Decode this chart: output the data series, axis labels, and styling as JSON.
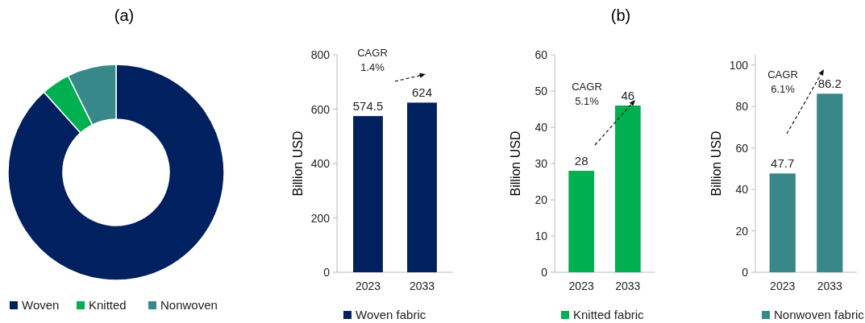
{
  "chart_data": [
    {
      "type": "donut",
      "title": "(a)",
      "categories": [
        "Woven",
        "Knitted",
        "Nonwoven"
      ],
      "values": [
        88.36,
        4.31,
        7.33
      ],
      "colors": [
        "#002060",
        "#00b050",
        "#38888a"
      ],
      "legend": "bottom"
    },
    {
      "type": "bar",
      "ylabel": "Billion USD",
      "categories": [
        "2023",
        "2033"
      ],
      "series": [
        {
          "name": "Woven fabric",
          "color": "#002060",
          "values": [
            574.5,
            624
          ]
        }
      ],
      "ylim": [
        0,
        800
      ],
      "yticks": [
        0,
        200,
        400,
        600,
        800
      ],
      "data_labels": true,
      "legend": "bottom",
      "annotations": [
        "CAGR\n1.4%"
      ]
    },
    {
      "type": "bar",
      "title": "(b)",
      "ylabel": "Billion USD",
      "categories": [
        "2023",
        "2033"
      ],
      "series": [
        {
          "name": "Knitted fabric",
          "color": "#00b050",
          "values": [
            28,
            46
          ]
        }
      ],
      "ylim": [
        0,
        60
      ],
      "yticks": [
        0,
        10,
        20,
        30,
        40,
        50,
        60
      ],
      "data_labels": true,
      "legend": "bottom",
      "annotations": [
        "CAGR\n5.1%"
      ]
    },
    {
      "type": "bar",
      "ylabel": "Billion USD",
      "categories": [
        "2023",
        "2033"
      ],
      "series": [
        {
          "name": "Nonwoven fabric",
          "color": "#38888a",
          "values": [
            47.7,
            86.2
          ]
        }
      ],
      "ylim": [
        0,
        105
      ],
      "yticks": [
        0,
        20,
        40,
        60,
        80,
        100
      ],
      "data_labels": true,
      "legend": "bottom",
      "annotations": [
        "CAGR\n6.1%"
      ]
    }
  ]
}
